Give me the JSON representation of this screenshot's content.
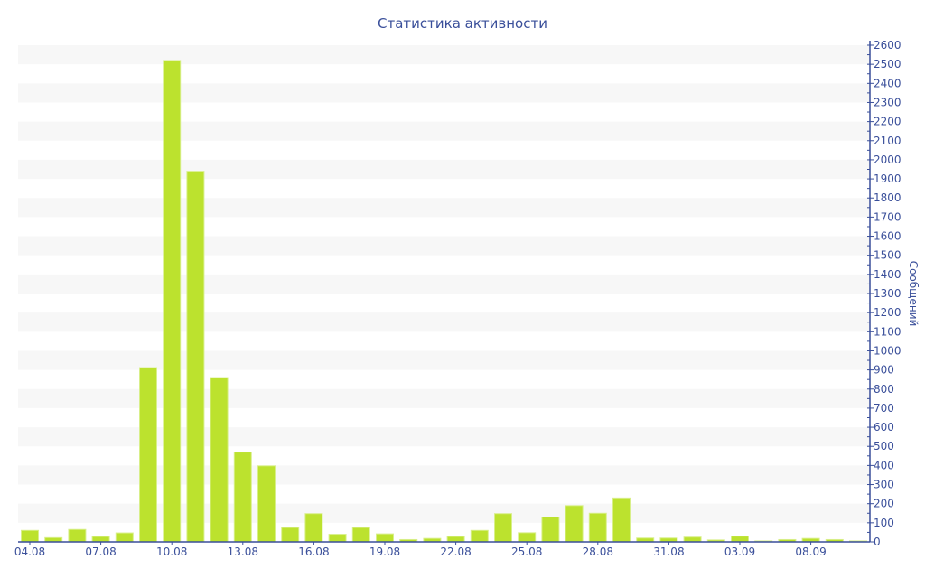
{
  "chart_data": {
    "type": "bar",
    "title": "Статистика активности",
    "xlabel": "",
    "ylabel": "Сообщений",
    "ylim": [
      0,
      2600
    ],
    "y_ticks": [
      0,
      100,
      200,
      300,
      400,
      500,
      600,
      700,
      800,
      900,
      1000,
      1100,
      1200,
      1300,
      1400,
      1500,
      1600,
      1700,
      1800,
      1900,
      2000,
      2100,
      2200,
      2300,
      2400,
      2500,
      2600
    ],
    "y_axis_side": "right",
    "grid": "alternating horizontal bands",
    "categories": [
      "04.08",
      "05.08",
      "06.08",
      "07.08",
      "08.08",
      "09.08",
      "10.08",
      "11.08",
      "12.08",
      "13.08",
      "14.08",
      "15.08",
      "16.08",
      "17.08",
      "18.08",
      "19.08",
      "20.08",
      "21.08",
      "22.08",
      "23.08",
      "24.08",
      "25.08",
      "26.08",
      "27.08",
      "28.08",
      "29.08",
      "30.08",
      "31.08",
      "01.09",
      "02.09",
      "03.09",
      "06.09",
      "07.09",
      "08.09",
      "09.09",
      "10.09"
    ],
    "x_tick_labels": [
      "04.08",
      "07.08",
      "10.08",
      "13.08",
      "16.08",
      "19.08",
      "22.08",
      "25.08",
      "28.08",
      "31.08",
      "03.09",
      "08.09"
    ],
    "values": [
      60,
      22,
      65,
      28,
      47,
      912,
      2520,
      1940,
      860,
      470,
      398,
      75,
      148,
      40,
      75,
      42,
      12,
      18,
      28,
      60,
      148,
      48,
      130,
      190,
      150,
      230,
      20,
      20,
      25,
      10,
      30,
      5,
      12,
      18,
      12,
      5
    ],
    "colors": {
      "bar": "#bce22e",
      "axis": "#3a4f9a",
      "band": "#f7f7f7"
    }
  }
}
